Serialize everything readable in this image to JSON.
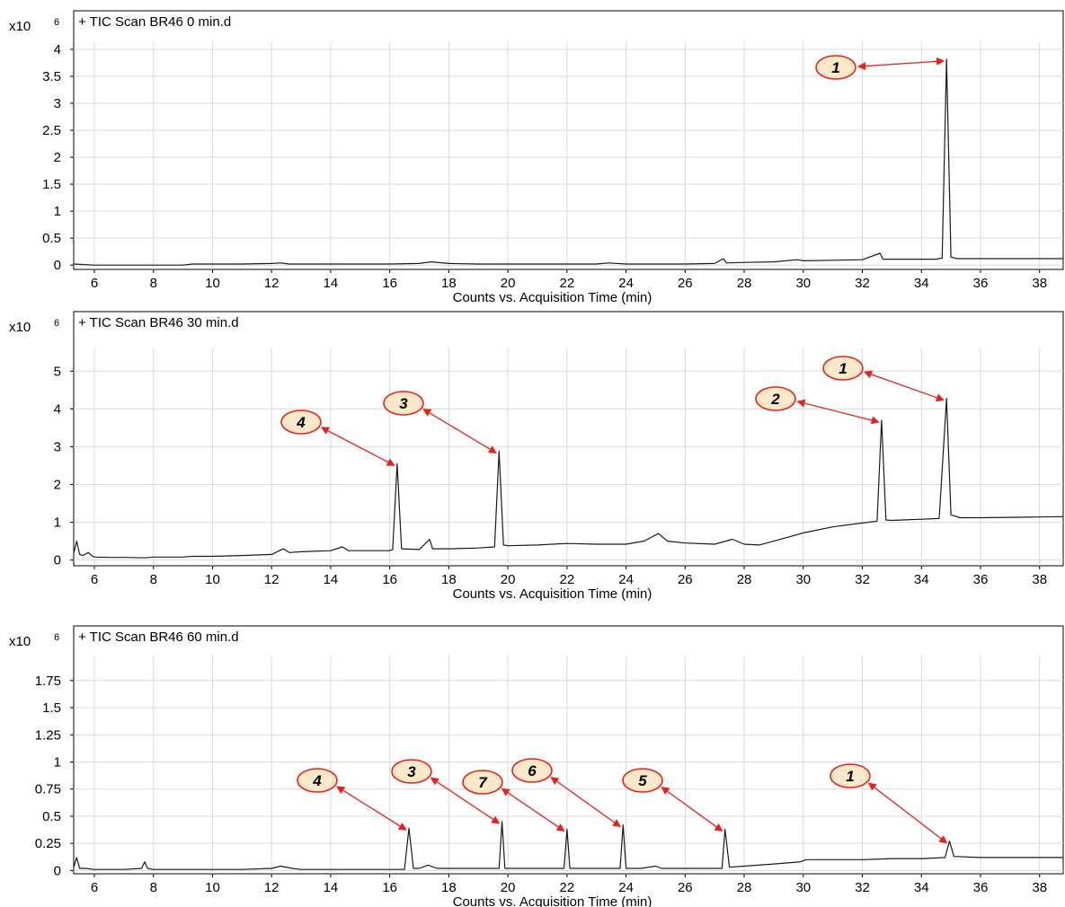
{
  "colors": {
    "trace": "#1a1a1a",
    "grid": "#d9d9d9",
    "frame": "#000000",
    "callout_fill": "#fbe8c8",
    "callout_stroke": "#e8201b",
    "arrow": "#e8201b"
  },
  "chart_data": [
    {
      "type": "line",
      "title": "+ TIC Scan BR46 0 min.d",
      "xlabel": "Counts vs. Acquisition Time (min)",
      "ylabel": "",
      "y_multiplier": "x10",
      "y_multiplier_exponent": "6",
      "xlim": [
        5.3,
        38.8
      ],
      "ylim": [
        -0.08,
        4.15
      ],
      "xticks": [
        6,
        8,
        10,
        12,
        14,
        16,
        18,
        20,
        22,
        24,
        26,
        28,
        30,
        32,
        34,
        36,
        38
      ],
      "xtick_labels": [
        "6",
        "8",
        "10",
        "12",
        "14",
        "16",
        "18",
        "20",
        "22",
        "24",
        "26",
        "28",
        "30",
        "32",
        "34",
        "36",
        "38"
      ],
      "yticks": [
        0,
        0.5,
        1,
        1.5,
        2,
        2.5,
        3,
        3.5,
        4
      ],
      "ytick_labels": [
        "0",
        "0.5",
        "1",
        "1.5",
        "2",
        "2.5",
        "3",
        "3.5",
        "4"
      ],
      "grid": true,
      "series": [
        {
          "x": [
            5.3,
            6,
            7,
            8,
            9,
            9.3,
            10,
            11,
            12,
            12.3,
            12.6,
            13,
            14,
            15,
            16,
            17,
            17.4,
            18,
            19,
            20,
            21,
            22,
            23,
            23.4,
            24,
            25,
            26,
            27,
            27.3,
            27.4,
            28,
            29,
            29.8,
            30,
            31,
            32,
            32.6,
            32.7,
            33,
            34,
            34.5,
            34.7,
            34.85,
            35.0,
            35.2,
            36,
            37,
            38,
            38.8
          ],
          "y": [
            0.02,
            0.0,
            0.0,
            0.0,
            0.0,
            0.02,
            0.02,
            0.02,
            0.03,
            0.04,
            0.02,
            0.02,
            0.02,
            0.02,
            0.02,
            0.03,
            0.06,
            0.03,
            0.02,
            0.02,
            0.02,
            0.02,
            0.02,
            0.04,
            0.02,
            0.02,
            0.02,
            0.03,
            0.12,
            0.04,
            0.05,
            0.06,
            0.1,
            0.08,
            0.09,
            0.1,
            0.22,
            0.11,
            0.11,
            0.11,
            0.11,
            0.13,
            3.82,
            0.15,
            0.12,
            0.12,
            0.12,
            0.12,
            0.12
          ]
        }
      ],
      "peaks": [
        {
          "label": "1",
          "x": 34.85,
          "y": 3.82
        }
      ]
    },
    {
      "type": "line",
      "title": "+ TIC Scan BR46 30 min.d",
      "xlabel": "Counts vs. Acquisition Time (min)",
      "ylabel": "",
      "y_multiplier": "x10",
      "y_multiplier_exponent": "6",
      "xlim": [
        5.3,
        38.8
      ],
      "ylim": [
        -0.15,
        5.6
      ],
      "xticks": [
        6,
        8,
        10,
        12,
        14,
        16,
        18,
        20,
        22,
        24,
        26,
        28,
        30,
        32,
        34,
        36,
        38
      ],
      "xtick_labels": [
        "6",
        "8",
        "10",
        "12",
        "14",
        "16",
        "18",
        "20",
        "22",
        "24",
        "26",
        "28",
        "30",
        "32",
        "34",
        "36",
        "38"
      ],
      "yticks": [
        0,
        1,
        2,
        3,
        4,
        5
      ],
      "ytick_labels": [
        "0",
        "1",
        "2",
        "3",
        "4",
        "5"
      ],
      "grid": true,
      "series": [
        {
          "x": [
            5.3,
            5.4,
            5.5,
            5.6,
            5.8,
            5.9,
            6.0,
            6.5,
            7,
            7.7,
            8,
            9,
            9.3,
            10,
            11,
            12,
            12.4,
            12.6,
            13,
            14,
            14.4,
            14.6,
            15,
            16,
            16.1,
            16.25,
            16.4,
            17,
            17.35,
            17.45,
            18,
            19,
            19.55,
            19.7,
            19.85,
            20,
            21,
            22,
            23,
            24,
            24.6,
            25.1,
            25.4,
            26,
            27,
            27.6,
            28,
            28.5,
            29,
            30,
            31,
            32,
            32.5,
            32.65,
            32.8,
            33,
            34,
            34.6,
            34.85,
            35.0,
            35.3,
            36,
            37,
            38,
            38.8
          ],
          "y": [
            0.18,
            0.5,
            0.15,
            0.12,
            0.2,
            0.12,
            0.08,
            0.07,
            0.07,
            0.06,
            0.08,
            0.08,
            0.1,
            0.1,
            0.12,
            0.15,
            0.3,
            0.2,
            0.22,
            0.25,
            0.35,
            0.25,
            0.25,
            0.25,
            0.28,
            2.55,
            0.3,
            0.28,
            0.55,
            0.3,
            0.3,
            0.32,
            0.35,
            2.88,
            0.4,
            0.38,
            0.4,
            0.44,
            0.42,
            0.42,
            0.5,
            0.7,
            0.5,
            0.45,
            0.42,
            0.55,
            0.42,
            0.4,
            0.5,
            0.72,
            0.88,
            0.98,
            1.03,
            3.7,
            1.06,
            1.05,
            1.08,
            1.1,
            4.28,
            1.2,
            1.12,
            1.12,
            1.13,
            1.14,
            1.15
          ]
        }
      ],
      "peaks": [
        {
          "label": "4",
          "x": 16.25,
          "y": 2.55
        },
        {
          "label": "3",
          "x": 19.7,
          "y": 2.88
        },
        {
          "label": "2",
          "x": 32.65,
          "y": 3.7
        },
        {
          "label": "1",
          "x": 34.85,
          "y": 4.28
        }
      ]
    },
    {
      "type": "line",
      "title": "+ TIC Scan BR46 60 min.d",
      "xlabel": "Counts vs. Acquisition Time (min)",
      "ylabel": "",
      "y_multiplier": "x10",
      "y_multiplier_exponent": "6",
      "xlim": [
        5.3,
        38.8
      ],
      "ylim": [
        -0.03,
        1.98
      ],
      "xticks": [
        6,
        8,
        10,
        12,
        14,
        16,
        18,
        20,
        22,
        24,
        26,
        28,
        30,
        32,
        34,
        36,
        38
      ],
      "xtick_labels": [
        "6",
        "8",
        "10",
        "12",
        "14",
        "16",
        "18",
        "20",
        "22",
        "24",
        "26",
        "28",
        "30",
        "32",
        "34",
        "36",
        "38"
      ],
      "yticks": [
        0,
        0.25,
        0.5,
        0.75,
        1,
        1.25,
        1.5,
        1.75
      ],
      "ytick_labels": [
        "0",
        "0.25",
        "0.5",
        "0.75",
        "1",
        "1.25",
        "1.5",
        "1.75"
      ],
      "grid": true,
      "series": [
        {
          "x": [
            5.3,
            5.4,
            5.5,
            5.7,
            6.0,
            7,
            7.6,
            7.7,
            7.8,
            8,
            9,
            10,
            11,
            12,
            12.3,
            12.7,
            13,
            14,
            15,
            16,
            16.5,
            16.65,
            16.8,
            17,
            17.3,
            17.6,
            18,
            19,
            19.7,
            19.8,
            19.9,
            20,
            21,
            21.9,
            22.0,
            22.1,
            23,
            23.8,
            23.9,
            24.0,
            24.5,
            25.0,
            25.2,
            26,
            27,
            27.25,
            27.35,
            27.5,
            28,
            29,
            29.9,
            30.1,
            31,
            32,
            33,
            34,
            34.8,
            34.95,
            35.1,
            36,
            37,
            38,
            38.8
          ],
          "y": [
            0.03,
            0.12,
            0.02,
            0.02,
            0.01,
            0.01,
            0.02,
            0.08,
            0.02,
            0.01,
            0.01,
            0.01,
            0.01,
            0.02,
            0.04,
            0.02,
            0.01,
            0.01,
            0.01,
            0.01,
            0.01,
            0.39,
            0.02,
            0.02,
            0.05,
            0.02,
            0.02,
            0.02,
            0.02,
            0.45,
            0.02,
            0.02,
            0.02,
            0.02,
            0.38,
            0.02,
            0.02,
            0.02,
            0.42,
            0.02,
            0.02,
            0.04,
            0.02,
            0.02,
            0.02,
            0.02,
            0.38,
            0.03,
            0.04,
            0.06,
            0.08,
            0.1,
            0.1,
            0.1,
            0.11,
            0.11,
            0.12,
            0.27,
            0.13,
            0.12,
            0.12,
            0.12,
            0.12
          ]
        }
      ],
      "peaks": [
        {
          "label": "4",
          "x": 16.65,
          "y": 0.39
        },
        {
          "label": "3",
          "x": 19.8,
          "y": 0.45
        },
        {
          "label": "7",
          "x": 22.0,
          "y": 0.38
        },
        {
          "label": "6",
          "x": 23.9,
          "y": 0.42
        },
        {
          "label": "5",
          "x": 27.35,
          "y": 0.38
        },
        {
          "label": "1",
          "x": 34.95,
          "y": 0.27
        }
      ]
    }
  ]
}
